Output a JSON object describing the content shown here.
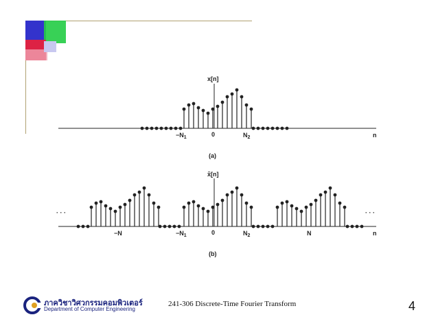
{
  "figure": {
    "top_panel": {
      "ylabel": "x[n]",
      "tick_neg": "−N",
      "tick_neg_sub": "1",
      "tick_zero": "0",
      "tick_pos": "N",
      "tick_pos_sub": "2",
      "axis_label": "n",
      "caption": "(a)"
    },
    "bottom_panel": {
      "ylabel": "x̃[n]",
      "tick_minus_N": "−N",
      "tick_neg": "−N",
      "tick_neg_sub": "1",
      "tick_zero": "0",
      "tick_pos": "N",
      "tick_pos_sub": "2",
      "tick_N": "N",
      "axis_label": "n",
      "ellipsis_left": "· · ·",
      "ellipsis_right": "· · ·",
      "caption": "(b)"
    }
  },
  "footer": {
    "logo_thai": "ภาควิชาวิศวกรรมคอมพิวเตอร์",
    "logo_english": "Department of Computer Engineering",
    "course_text": "241-306   Discrete-Time Fourier Transform",
    "page_number": "4"
  }
}
